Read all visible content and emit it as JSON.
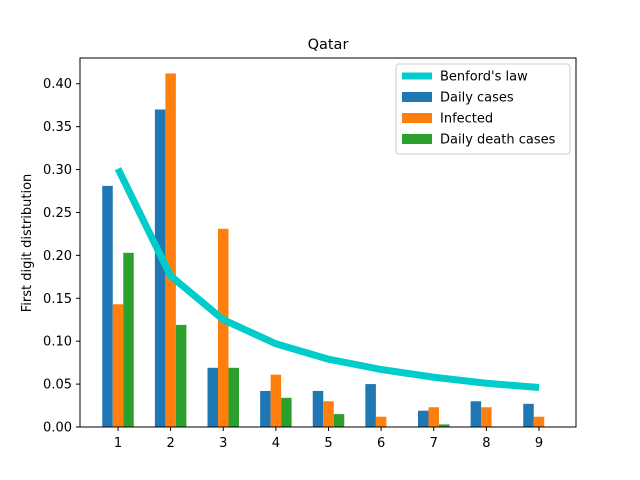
{
  "chart_data": {
    "type": "bar",
    "title": "Qatar",
    "xlabel": "",
    "ylabel": "First digit distribution",
    "categories": [
      "1",
      "2",
      "3",
      "4",
      "5",
      "6",
      "7",
      "8",
      "9"
    ],
    "ylim": [
      0,
      0.43
    ],
    "yticks": [
      "0.00",
      "0.05",
      "0.10",
      "0.15",
      "0.20",
      "0.25",
      "0.30",
      "0.35",
      "0.40"
    ],
    "grid": false,
    "legend_position": "top-right",
    "line_series": {
      "name": "Benford's law",
      "color": "#00cccc",
      "values": [
        0.301,
        0.176,
        0.125,
        0.097,
        0.079,
        0.067,
        0.058,
        0.051,
        0.046
      ]
    },
    "series": [
      {
        "name": "Daily cases",
        "color": "#1f77b4",
        "values": [
          0.281,
          0.37,
          0.069,
          0.042,
          0.042,
          0.05,
          0.019,
          0.03,
          0.027
        ]
      },
      {
        "name": "Infected",
        "color": "#ff7f0e",
        "values": [
          0.143,
          0.412,
          0.231,
          0.061,
          0.03,
          0.012,
          0.023,
          0.023,
          0.012
        ]
      },
      {
        "name": "Daily death cases",
        "color": "#2ca02c",
        "values": [
          0.203,
          0.119,
          0.069,
          0.034,
          0.015,
          0.0,
          0.003,
          0.0,
          0.0
        ]
      }
    ]
  }
}
